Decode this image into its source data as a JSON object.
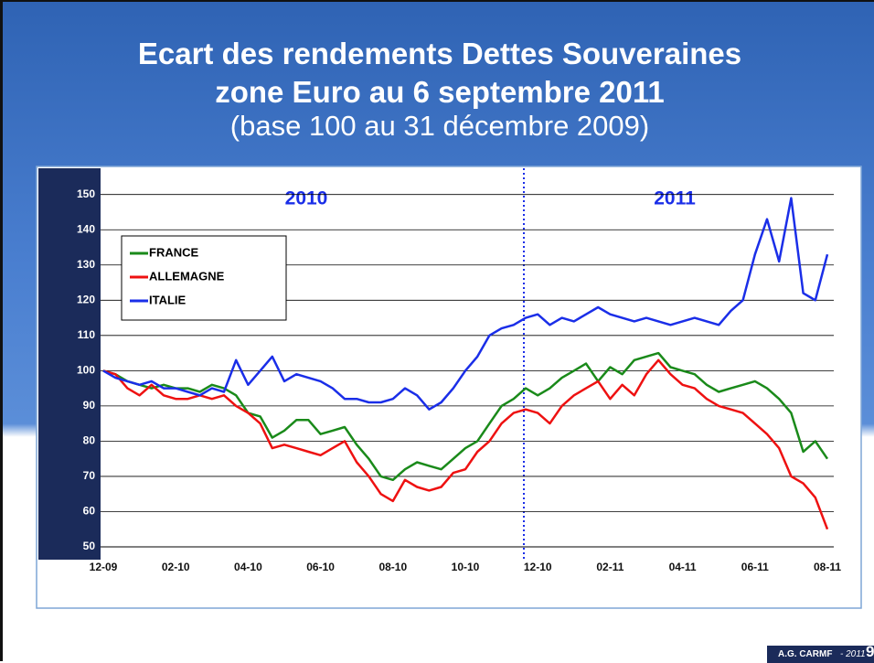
{
  "title": [
    "Ecart des rendements Dettes Souveraines",
    "zone Euro au 6 septembre 2011"
  ],
  "subtitle": "(base 100 au 31 décembre 2009)",
  "chart_data": {
    "type": "line",
    "annotations": [
      "2010",
      "2011"
    ],
    "categories": [
      "12-09",
      null,
      null,
      null,
      null,
      null,
      "02-10",
      null,
      null,
      null,
      null,
      null,
      "04-10",
      null,
      null,
      null,
      null,
      null,
      "06-10",
      null,
      null,
      null,
      null,
      null,
      "08-10",
      null,
      null,
      null,
      null,
      null,
      "10-10",
      null,
      null,
      null,
      null,
      null,
      "12-10",
      null,
      null,
      null,
      null,
      null,
      "02-11",
      null,
      null,
      null,
      null,
      null,
      "04-11",
      null,
      null,
      null,
      null,
      null,
      "06-11",
      null,
      null,
      null,
      null,
      null,
      "08-11"
    ],
    "series": [
      {
        "name": "FRANCE",
        "color": "#1a8a1a",
        "values": [
          100,
          99,
          97,
          96,
          95,
          96,
          95,
          95,
          94,
          96,
          95,
          93,
          88,
          87,
          81,
          83,
          86,
          86,
          82,
          83,
          84,
          79,
          75,
          70,
          69,
          72,
          74,
          73,
          72,
          75,
          78,
          80,
          85,
          90,
          92,
          95,
          93,
          95,
          98,
          100,
          102,
          97,
          101,
          99,
          103,
          104,
          105,
          101,
          100,
          99,
          96,
          94,
          95,
          96,
          97,
          95,
          92,
          88,
          77,
          80,
          75
        ]
      },
      {
        "name": "ALLEMAGNE",
        "color": "#ee1111",
        "values": [
          100,
          99,
          95,
          93,
          96,
          93,
          92,
          92,
          93,
          92,
          93,
          90,
          88,
          85,
          78,
          79,
          78,
          77,
          76,
          78,
          80,
          74,
          70,
          65,
          63,
          69,
          67,
          66,
          67,
          71,
          72,
          77,
          80,
          85,
          88,
          89,
          88,
          85,
          90,
          93,
          95,
          97,
          92,
          96,
          93,
          99,
          103,
          99,
          96,
          95,
          92,
          90,
          89,
          88,
          85,
          82,
          78,
          70,
          68,
          64,
          55
        ]
      },
      {
        "name": "ITALIE",
        "color": "#1a2ee8",
        "values": [
          100,
          98,
          97,
          96,
          97,
          95,
          95,
          94,
          93,
          95,
          94,
          103,
          96,
          100,
          104,
          97,
          99,
          98,
          97,
          95,
          92,
          92,
          91,
          91,
          92,
          95,
          93,
          89,
          91,
          95,
          100,
          104,
          110,
          112,
          113,
          115,
          116,
          113,
          115,
          114,
          116,
          118,
          116,
          115,
          114,
          115,
          114,
          113,
          114,
          115,
          114,
          113,
          117,
          120,
          133,
          143,
          131,
          149,
          122,
          120,
          133
        ]
      }
    ],
    "ylim": [
      50,
      152
    ],
    "yticks": [
      50,
      60,
      70,
      80,
      90,
      100,
      110,
      120,
      130,
      140,
      150
    ],
    "grid": true
  },
  "footer": {
    "org": "A.G. CARMF",
    "year": "- 2011",
    "page": "9"
  }
}
